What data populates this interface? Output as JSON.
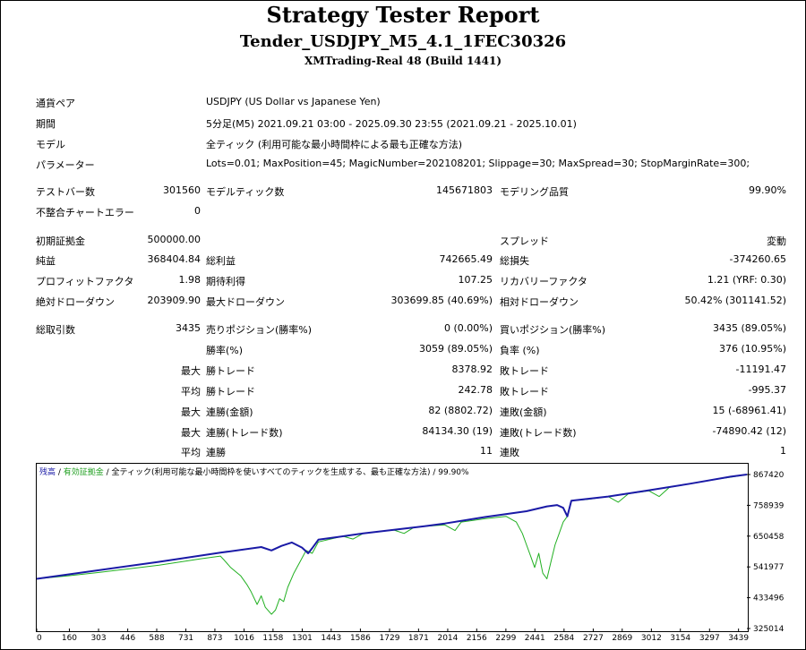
{
  "header": {
    "title": "Strategy Tester Report",
    "subtitle": "Tender_USDJPY_M5_4.1_1FEC30326",
    "server": "XMTrading-Real 48 (Build 1441)"
  },
  "settings": [
    {
      "label": "通貨ペア",
      "value": "USDJPY (US Dollar vs Japanese Yen)"
    },
    {
      "label": "期間",
      "value": "5分足(M5) 2021.09.21 03:00 - 2025.09.30 23:55 (2021.09.21 - 2025.10.01)"
    },
    {
      "label": "モデル",
      "value": "全ティック (利用可能な最小時間枠による最も正確な方法)"
    },
    {
      "label": "パラメーター",
      "value": "Lots=0.01; MaxPosition=45; MagicNumber=202108201; Slippage=30; MaxSpread=30; StopMarginRate=300;"
    }
  ],
  "bars": {
    "testbars_label": "テストバー数",
    "testbars_value": "301560",
    "ticks_label": "モデルティック数",
    "ticks_value": "145671803",
    "quality_label": "モデリング品質",
    "quality_value": "99.90%",
    "errors_label": "不整合チャートエラー",
    "errors_value": "0"
  },
  "results": {
    "deposit_label": "初期証拠金",
    "deposit_value": "500000.00",
    "spread_label": "スプレッド",
    "spread_value": "変動",
    "netprofit_label": "純益",
    "netprofit_value": "368404.84",
    "grossprofit_label": "総利益",
    "grossprofit_value": "742665.49",
    "grossloss_label": "総損失",
    "grossloss_value": "-374260.65",
    "pf_label": "プロフィットファクタ",
    "pf_value": "1.98",
    "expected_label": "期待利得",
    "expected_value": "107.25",
    "recovery_label": "リカバリーファクタ",
    "recovery_value": "1.21 (YRF: 0.30)",
    "absdd_label": "絶対ドローダウン",
    "absdd_value": "203909.90",
    "maxdd_label": "最大ドローダウン",
    "maxdd_value": "303699.85 (40.69%)",
    "reldd_label": "相対ドローダウン",
    "reldd_value": "50.42% (301141.52)"
  },
  "trades": {
    "total_label": "総取引数",
    "total_value": "3435",
    "short_label": "売りポジション(勝率%)",
    "short_value": "0 (0.00%)",
    "long_label": "買いポジション(勝率%)",
    "long_value": "3435 (89.05%)",
    "win_label": "勝率(%)",
    "win_value": "3059 (89.05%)",
    "loss_label": "負率 (%)",
    "loss_value": "376 (10.95%)",
    "max": "最大",
    "avg": "平均",
    "maxwin_label": "勝トレード",
    "maxwin_value": "8378.92",
    "maxloss_label": "敗トレード",
    "maxloss_value": "-11191.47",
    "avgwin_label": "勝トレード",
    "avgwin_value": "242.78",
    "avgloss_label": "敗トレード",
    "avgloss_value": "-995.37",
    "conswin_label": "連勝(金額)",
    "conswin_value": "82 (8802.72)",
    "consloss_label": "連敗(金額)",
    "consloss_value": "15 (-68961.41)",
    "maxconsprofit_label": "連勝(トレード数)",
    "maxconsprofit_value": "84134.30 (19)",
    "maxconsloss_label": "連敗(トレード数)",
    "maxconsloss_value": "-74890.42 (12)",
    "avgconswin_label": "連勝",
    "avgconswin_value": "11",
    "avgconsloss_label": "連敗",
    "avgconsloss_value": "1"
  },
  "chart_data": {
    "type": "line",
    "legend_balance": "残高",
    "legend_equity": "有効証拠金",
    "legend_rest": " / 全ティック(利用可能な最小時間枠を使いすべてのティックを生成する、最も正確な方法) / 99.90%",
    "legend_sep": " / ",
    "colors": {
      "balance": "#1a1aa6",
      "equity": "#22b022",
      "legend_balance": "#1a1aa6",
      "legend_equity": "#22a022"
    },
    "xticks": [
      "0",
      "160",
      "303",
      "446",
      "588",
      "731",
      "873",
      "1016",
      "1158",
      "1301",
      "1443",
      "1586",
      "1729",
      "1871",
      "2014",
      "2156",
      "2299",
      "2441",
      "2584",
      "2727",
      "2869",
      "3012",
      "3154",
      "3297",
      "3439"
    ],
    "yticks": [
      "867420",
      "758939",
      "650458",
      "541977",
      "433496",
      "325014"
    ],
    "xlim": [
      0,
      3480
    ],
    "ylim": [
      325014,
      867420
    ],
    "balance": [
      [
        0,
        500000
      ],
      [
        300,
        530000
      ],
      [
        600,
        560000
      ],
      [
        900,
        592000
      ],
      [
        1100,
        612000
      ],
      [
        1150,
        600000
      ],
      [
        1200,
        616000
      ],
      [
        1250,
        628000
      ],
      [
        1300,
        610000
      ],
      [
        1330,
        590000
      ],
      [
        1350,
        608000
      ],
      [
        1380,
        638000
      ],
      [
        1600,
        660000
      ],
      [
        1900,
        685000
      ],
      [
        2000,
        695000
      ],
      [
        2200,
        718000
      ],
      [
        2400,
        738000
      ],
      [
        2500,
        755000
      ],
      [
        2550,
        760000
      ],
      [
        2580,
        750000
      ],
      [
        2600,
        720000
      ],
      [
        2620,
        775000
      ],
      [
        2800,
        790000
      ],
      [
        3000,
        812000
      ],
      [
        3200,
        835000
      ],
      [
        3400,
        860000
      ],
      [
        3480,
        867420
      ]
    ],
    "equity": [
      [
        0,
        500000
      ],
      [
        150,
        510000
      ],
      [
        300,
        522000
      ],
      [
        450,
        535000
      ],
      [
        600,
        548000
      ],
      [
        800,
        570000
      ],
      [
        900,
        580000
      ],
      [
        920,
        565000
      ],
      [
        950,
        540000
      ],
      [
        1000,
        510000
      ],
      [
        1030,
        480000
      ],
      [
        1050,
        455000
      ],
      [
        1080,
        410000
      ],
      [
        1100,
        440000
      ],
      [
        1120,
        400000
      ],
      [
        1150,
        375000
      ],
      [
        1170,
        390000
      ],
      [
        1190,
        430000
      ],
      [
        1210,
        420000
      ],
      [
        1230,
        470000
      ],
      [
        1260,
        520000
      ],
      [
        1290,
        560000
      ],
      [
        1320,
        600000
      ],
      [
        1350,
        590000
      ],
      [
        1380,
        630000
      ],
      [
        1500,
        650000
      ],
      [
        1550,
        640000
      ],
      [
        1600,
        660000
      ],
      [
        1750,
        672000
      ],
      [
        1800,
        660000
      ],
      [
        1850,
        682000
      ],
      [
        2000,
        690000
      ],
      [
        2050,
        670000
      ],
      [
        2080,
        700000
      ],
      [
        2200,
        712000
      ],
      [
        2300,
        720000
      ],
      [
        2350,
        700000
      ],
      [
        2380,
        660000
      ],
      [
        2400,
        620000
      ],
      [
        2420,
        580000
      ],
      [
        2440,
        540000
      ],
      [
        2460,
        590000
      ],
      [
        2480,
        520000
      ],
      [
        2500,
        500000
      ],
      [
        2520,
        560000
      ],
      [
        2540,
        620000
      ],
      [
        2560,
        660000
      ],
      [
        2580,
        700000
      ],
      [
        2600,
        720000
      ],
      [
        2620,
        775000
      ],
      [
        2700,
        780000
      ],
      [
        2800,
        790000
      ],
      [
        2850,
        770000
      ],
      [
        2900,
        800000
      ],
      [
        3000,
        810000
      ],
      [
        3050,
        790000
      ],
      [
        3100,
        822000
      ],
      [
        3200,
        835000
      ],
      [
        3300,
        848000
      ],
      [
        3400,
        858000
      ],
      [
        3480,
        867000
      ]
    ]
  }
}
